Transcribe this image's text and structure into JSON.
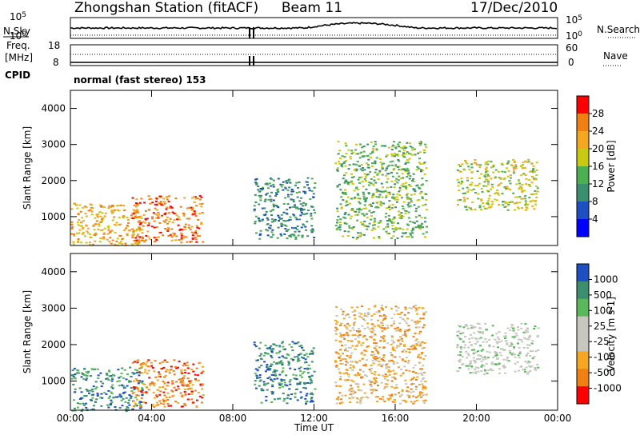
{
  "header": {
    "station": "Zhongshan Station (fitACF)",
    "beam": "Beam 11",
    "date": "17/Dec/2010"
  },
  "summary_panels": {
    "nsky_label": "N.Sky",
    "nsearch_label": "N.Search",
    "freq_label_line1": "Freq.",
    "freq_label_line2": "[MHz]",
    "nave_label": "Nave",
    "cpid_label": "CPID",
    "nsky_ticks": [
      "10^5",
      "10^0"
    ],
    "nsearch_ticks": [
      "10^5",
      "10^0"
    ],
    "freq_ticks": [
      "18",
      "8"
    ],
    "nave_ticks": [
      "60",
      "0"
    ],
    "cpid_text": "normal (fast stereo) 153"
  },
  "colors": {
    "power_scale": [
      "#0000ff",
      "#1c4fc1",
      "#3c8f6e",
      "#4caf50",
      "#c9c912",
      "#f5a623",
      "#f07f14",
      "#ff0000"
    ],
    "velocity_scale": [
      "#1c4fc1",
      "#3c8f6e",
      "#5ab85a",
      "#c7c7c0",
      "#c7c7c0",
      "#f5a623",
      "#f07f14",
      "#ff0000"
    ]
  },
  "chart_data": [
    {
      "type": "heatmap",
      "title": "",
      "xlabel": "",
      "ylabel": "Slant Range [km]",
      "ylim": [
        200,
        4500
      ],
      "yticks": [
        "1000",
        "2000",
        "3000",
        "4000"
      ],
      "colorbar_label": "Power [dB]",
      "colorbar_ticks": [
        "4",
        "8",
        "12",
        "16",
        "20",
        "24",
        "28"
      ],
      "clim": [
        0,
        32
      ],
      "features": [
        {
          "x_range": [
            "00:00",
            "03:30"
          ],
          "y_range": [
            200,
            1400
          ],
          "value": 20
        },
        {
          "x_range": [
            "03:00",
            "06:30"
          ],
          "y_range": [
            300,
            1600
          ],
          "value": 24
        },
        {
          "x_range": [
            "09:00",
            "12:00"
          ],
          "y_range": [
            400,
            2100
          ],
          "value": 8
        },
        {
          "x_range": [
            "13:00",
            "17:30"
          ],
          "y_range": [
            400,
            3100
          ],
          "value": 12
        },
        {
          "x_range": [
            "19:00",
            "23:00"
          ],
          "y_range": [
            1200,
            2600
          ],
          "value": 16
        }
      ]
    },
    {
      "type": "heatmap",
      "title": "",
      "xlabel": "Time UT",
      "ylabel": "Slant Range [km]",
      "ylim": [
        200,
        4500
      ],
      "yticks": [
        "1000",
        "2000",
        "3000",
        "4000"
      ],
      "xticks": [
        "00:00",
        "04:00",
        "08:00",
        "12:00",
        "16:00",
        "20:00",
        "00:00"
      ],
      "colorbar_label": "Velocity [m s-1]",
      "colorbar_ticks": [
        "1000",
        "500",
        "100",
        "25",
        "-25",
        "-100",
        "-500",
        "-1000"
      ],
      "features": [
        {
          "x_range": [
            "00:00",
            "03:30"
          ],
          "y_range": [
            200,
            1400
          ],
          "value": 100
        },
        {
          "x_range": [
            "03:00",
            "06:30"
          ],
          "y_range": [
            300,
            1600
          ],
          "value": -500
        },
        {
          "x_range": [
            "09:00",
            "12:00"
          ],
          "y_range": [
            400,
            2100
          ],
          "value": 100
        },
        {
          "x_range": [
            "13:00",
            "17:30"
          ],
          "y_range": [
            400,
            3100
          ],
          "value": -100
        },
        {
          "x_range": [
            "19:00",
            "23:00"
          ],
          "y_range": [
            1200,
            2600
          ],
          "value": 0
        }
      ]
    }
  ]
}
